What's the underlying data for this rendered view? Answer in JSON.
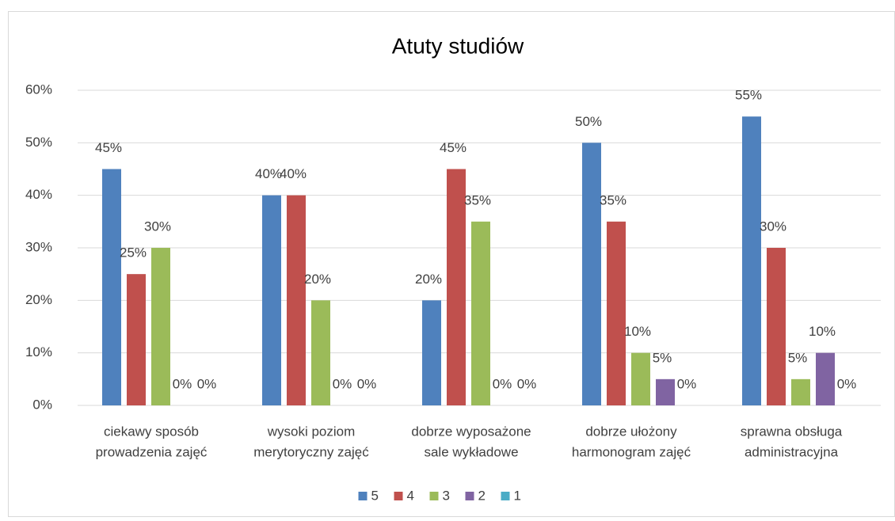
{
  "chart_data": {
    "type": "bar",
    "title": "Atuty studiów",
    "categories": [
      [
        "ciekawy sposób",
        "prowadzenia zajęć"
      ],
      [
        "wysoki poziom",
        "merytoryczny zajęć"
      ],
      [
        "dobrze wyposażone",
        "sale wykładowe"
      ],
      [
        "dobrze ułożony",
        "harmonogram zajęć"
      ],
      [
        "sprawna obsługa",
        "administracyjna"
      ]
    ],
    "series": [
      {
        "name": "5",
        "color": "#4f81bd",
        "values": [
          45,
          40,
          20,
          50,
          55
        ],
        "value_labels": [
          "45%",
          "40%",
          "20%",
          "50%",
          "55%"
        ]
      },
      {
        "name": "4",
        "color": "#c0504d",
        "values": [
          25,
          40,
          45,
          35,
          30
        ],
        "value_labels": [
          "25%",
          "40%",
          "45%",
          "35%",
          "30%"
        ]
      },
      {
        "name": "3",
        "color": "#9bbb59",
        "values": [
          30,
          20,
          35,
          10,
          5
        ],
        "value_labels": [
          "30%",
          "20%",
          "35%",
          "10%",
          "5%"
        ]
      },
      {
        "name": "2",
        "color": "#8064a2",
        "values": [
          0,
          0,
          0,
          5,
          10
        ],
        "value_labels": [
          "0%",
          "0%",
          "0%",
          "5%",
          "10%"
        ]
      },
      {
        "name": "1",
        "color": "#4bacc6",
        "values": [
          0,
          0,
          0,
          0,
          0
        ],
        "value_labels": [
          "0%",
          "0%",
          "0%",
          "0%",
          "0%"
        ]
      }
    ],
    "ylim": [
      0,
      60
    ],
    "yticks": [
      {
        "value": 0,
        "label": "0%"
      },
      {
        "value": 10,
        "label": "10%"
      },
      {
        "value": 20,
        "label": "20%"
      },
      {
        "value": 30,
        "label": "30%"
      },
      {
        "value": 40,
        "label": "40%"
      },
      {
        "value": 50,
        "label": "50%"
      },
      {
        "value": 60,
        "label": "60%"
      }
    ],
    "grid": true,
    "legend": "bottom"
  }
}
